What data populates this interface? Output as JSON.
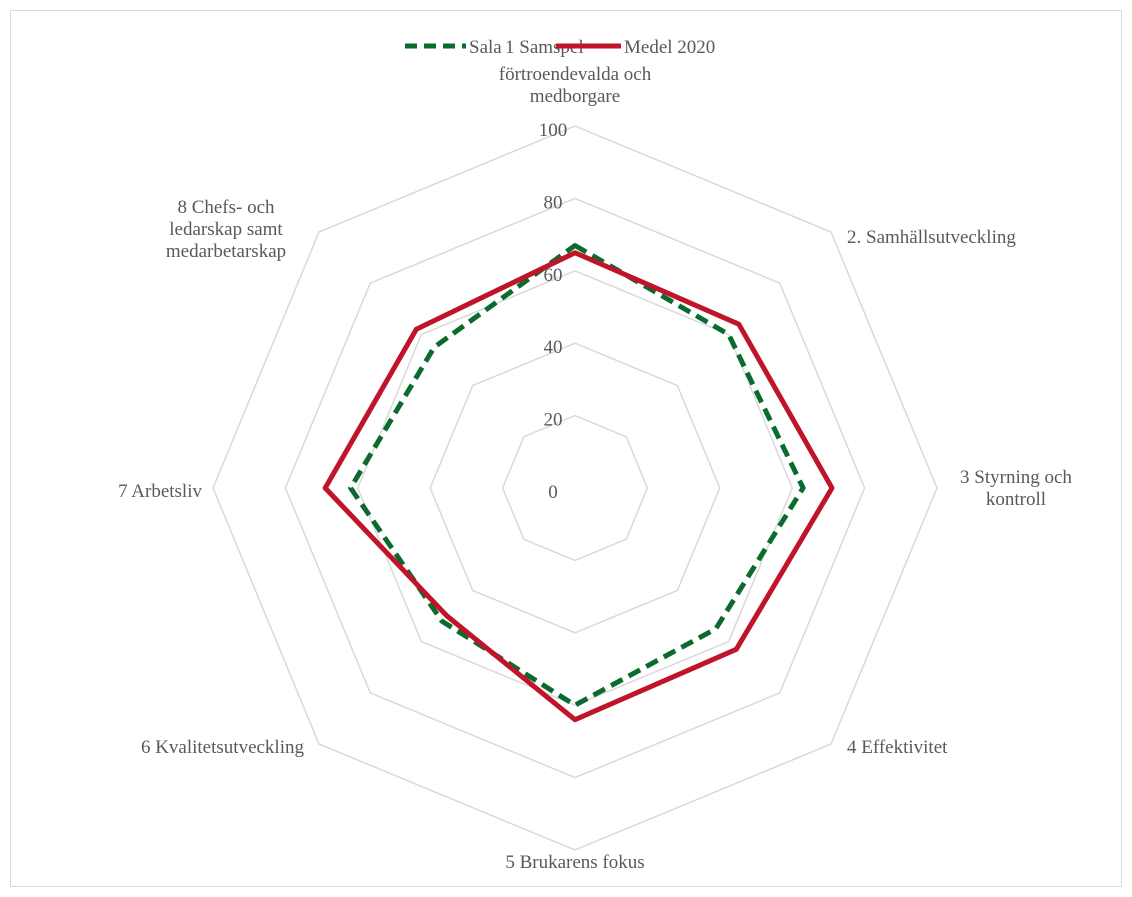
{
  "chart_data": {
    "type": "radar",
    "categories": [
      "1. Samspel förtroendevalda och medborgare",
      "2. Samhällsutveckling",
      "3 Styrning och kontroll",
      "4 Effektivitet",
      "5 Brukarens fokus",
      "6 Kvalitetsutveckling",
      "7 Arbetsliv",
      "8 Chefs- och ledarskap samt medarbetarskap"
    ],
    "category_label_lines": [
      [
        "förtroendevalda och",
        "medborgare"
      ],
      [
        "2. Samhällsutveckling"
      ],
      [
        "3 Styrning och",
        "kontroll"
      ],
      [
        "4 Effektivitet"
      ],
      [
        "5 Brukarens fokus"
      ],
      [
        "6 Kvalitetsutveckling"
      ],
      [
        "7 Arbetsliv"
      ],
      [
        "8 Chefs- och",
        "ledarskap samt",
        "medarbetarskap"
      ]
    ],
    "series": [
      {
        "name": "Sala",
        "values": [
          67,
          60,
          63,
          55,
          60,
          52,
          62,
          55
        ],
        "color": "#0b6b2e",
        "dash": "dashed"
      },
      {
        "name": "Medel 2020",
        "values": [
          65,
          64,
          71,
          63,
          64,
          50,
          69,
          62
        ],
        "color": "#c0142b",
        "dash": "solid"
      }
    ],
    "rmin": 0,
    "rmax": 100,
    "ticks": [
      0,
      20,
      40,
      60,
      80,
      100
    ],
    "grid": true,
    "grid_color": "#d9d9d9",
    "legend_position": "top",
    "legend_overlap_text": "1 Samspel"
  }
}
